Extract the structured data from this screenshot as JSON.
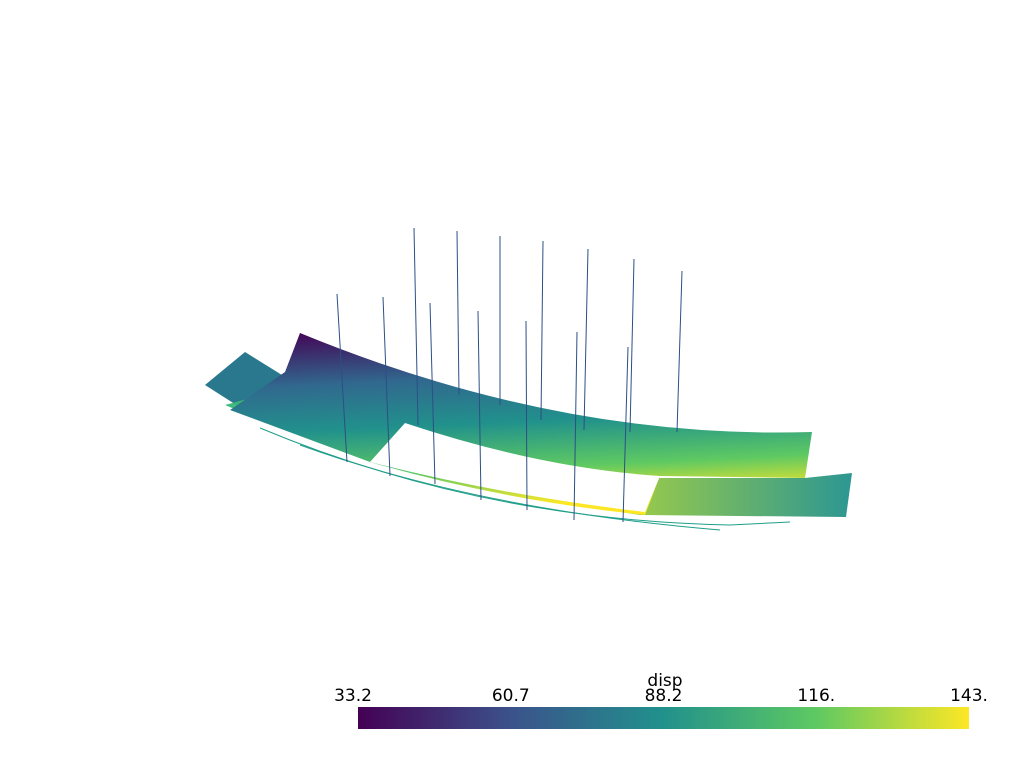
{
  "scalar_bar": {
    "title": "disp",
    "clim": [
      33.2,
      143.2
    ],
    "ticks": [
      33.2,
      60.7,
      88.2,
      {
        "value": 115.7,
        "label": "116."
      },
      {
        "value": 143.2,
        "label": "143."
      }
    ],
    "colors": [
      "#440154",
      "#3b528b",
      "#21918c",
      "#5ec962",
      "#fde725"
    ]
  }
}
